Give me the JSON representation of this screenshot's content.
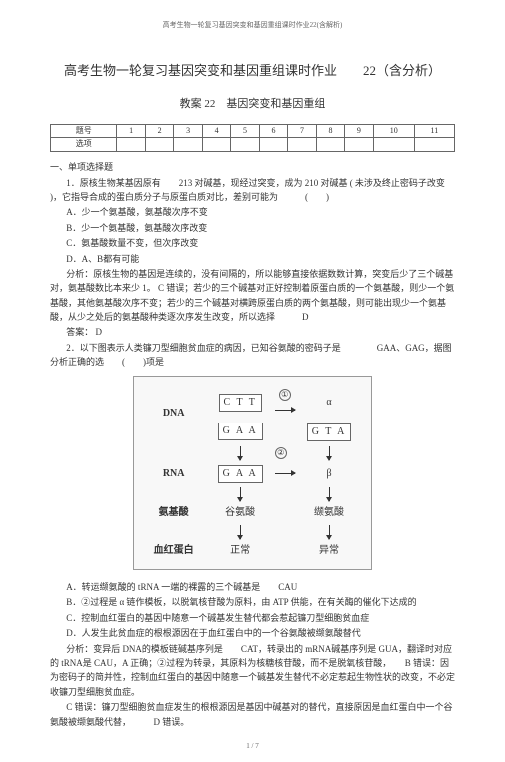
{
  "header": "高考生物一轮复习基因突变和基因重组课时作业22(含解析)",
  "mainTitle": "高考生物一轮复习基因突变和基因重组课时作业　　22（含分析）",
  "subTitle": "教案 22　基因突变和基因重组",
  "grid": {
    "r1": [
      "题号",
      "1",
      "2",
      "3",
      "4",
      "5",
      "6",
      "7",
      "8",
      "9",
      "10",
      "11"
    ],
    "r2": [
      "选项",
      "",
      "",
      "",
      "",
      "",
      "",
      "",
      "",
      "",
      "",
      ""
    ]
  },
  "sectionA": "一、单项选择题",
  "q1": {
    "stem": "1．原核生物某基因原有　　213 对碱基，现经过突变，成为 210 对碱基 ( 未涉及终止密码子改变 )，它指导合成的蛋白质分子与原蛋白质对比，差别可能为　　　(　　)",
    "A": "A．少一个氨基酸，氨基酸次序不变",
    "B": "B．少一个氨基酸，氨基酸次序改变",
    "C": "C．氨基酸数量不变，但次序改变",
    "D": "D．A、B都有可能",
    "analysis": "分析：原核生物的基因是连续的，没有间隔的，所以能够直接依据数数计算，突变后少了三个碱基对，氨基酸数比本来少 1。 C 错误；若少的三个碱基对正好控制着原蛋白质的一个氨基酸，则少一个氨基酸，其他氨基酸次序不变；若少的三个碱基对横跨原蛋白质的两个氨基酸，则可能出现少一个氨基酸，从少之处后的氨基酸种类逐次序发生改变，所以选择　　　D",
    "answer": "答案： D"
  },
  "q2": {
    "stem": "2．以下图表示人类镰刀型细胞贫血症的病因，已知谷氨酸的密码子是　　　　GAA、GAG，据图分析正确的选　　(　　)项是",
    "diagram": {
      "row_dna": "DNA",
      "row_rna": "RNA",
      "row_aa": "氨基酸",
      "row_prot": "血红蛋白",
      "ctt": "C T T",
      "gaa_top": "G A A",
      "gta": "G T A",
      "gaa_rna": "G A A",
      "alpha": "α",
      "beta": "β",
      "step1": "①",
      "step2": "②",
      "aa_glu": "谷氨酸",
      "aa_val": "缬氨酸",
      "normal": "正常",
      "abnormal": "异常"
    },
    "A": "A．转运缬氨酸的 tRNA 一端的裸露的三个碱基是　　CAU",
    "B": "B．②过程是 α 链作模板，以脱氧核苷酸为原料，由 ATP 供能，在有关酶的催化下达成的",
    "C": "C．控制血红蛋白的基因中随意一个碱基发生替代都会惹起镰刀型细胞贫血症",
    "D": "D．人发生此贫血症的根根源因在于血红蛋白中的一个谷氨酸被缬氨酸替代",
    "analysis1": "分析：变异后 DNA的模板链碱基序列是　　CAT，转录出的 mRNA碱基序列是 GUA，翻译时对应的 tRNA是 CAU，A 正确；②过程为转录，其原料为核糖核苷酸，而不是脱氧核苷酸，　　B 错误：因为密码子的简并性，控制血红蛋白的基因中随意一个碱基发生替代不必定惹起生物性状的改变，不必定收镰刀型细胞贫血症。",
    "analysis2": "C 错误：镰刀型细胞贫血症发生的根根源因是基因中碱基对的替代，直接原因是血红蛋白中一个谷氨酸被缬氨酸代替，　　　D 错误。"
  },
  "footer": "1 / 7"
}
